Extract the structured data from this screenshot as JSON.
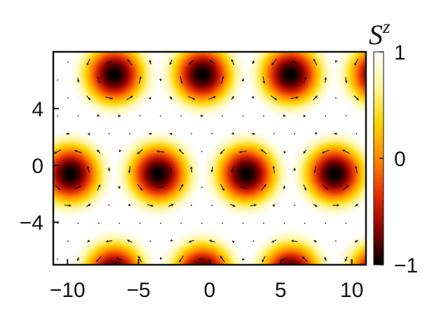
{
  "chart_data": {
    "type": "heatmap",
    "description_type": "skyrmion-lattice spin texture (color = S^z, arrows = in-plane spin)",
    "x_ticks": [
      "−10",
      "−5",
      "0",
      "5",
      "10"
    ],
    "x_tick_values": [
      -10,
      -5,
      0,
      5,
      10
    ],
    "y_ticks": [
      "4",
      "0",
      "−4"
    ],
    "y_tick_values": [
      4,
      0,
      -4
    ],
    "xlim": [
      -11,
      11
    ],
    "ylim": [
      -7,
      8
    ],
    "colorbar": {
      "title": "S",
      "title_superscript": "z",
      "range": [
        -1,
        1
      ],
      "ticks": [
        "1",
        "0",
        "−1"
      ],
      "tick_values": [
        1,
        0,
        -1
      ],
      "colors": [
        "#000000",
        "#8a0000",
        "#e53000",
        "#ff8a00",
        "#ffd400",
        "#fff59a",
        "#ffffff"
      ]
    },
    "skyrmion_centers": [
      [
        -6.7,
        6.4
      ],
      [
        -0.5,
        6.4
      ],
      [
        5.7,
        6.4
      ],
      [
        -9.8,
        -0.6
      ],
      [
        -3.6,
        -0.6
      ],
      [
        2.6,
        -0.6
      ],
      [
        8.8,
        -0.6
      ],
      [
        -6.7,
        -7.6
      ],
      [
        -0.5,
        -7.6
      ],
      [
        5.7,
        -7.6
      ],
      [
        11.9,
        6.4
      ],
      [
        11.9,
        -7.6
      ]
    ],
    "skyrmion_radius": 3.3,
    "arrow_spacing": 1.45
  }
}
